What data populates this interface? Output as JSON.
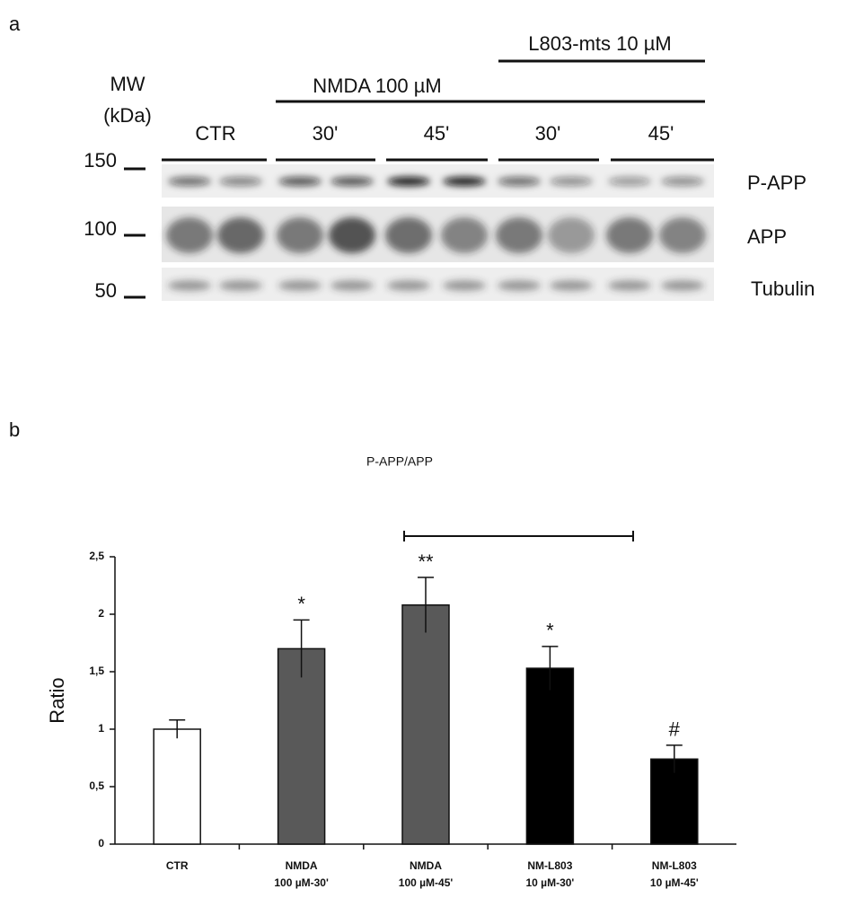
{
  "panel_a": {
    "letter": "a",
    "mw_label": [
      "MW",
      "(kDa)"
    ],
    "mw_markers": [
      "150",
      "100",
      "50"
    ],
    "treatment_labels": [
      "L803-mts 10 µM",
      "NMDA 100 µM"
    ],
    "group_labels": [
      "CTR",
      "30'",
      "45'",
      "30'",
      "45'"
    ],
    "band_labels": [
      "P-APP",
      "APP",
      "Tubulin"
    ]
  },
  "chart_data": {
    "type": "bar",
    "letter": "b",
    "title": "P-APP/APP",
    "ylabel": "Ratio",
    "categories": [
      [
        "CTR"
      ],
      [
        "NMDA",
        "100 µM-30'"
      ],
      [
        "NMDA",
        "100 µM-45'"
      ],
      [
        "NM-L803",
        "10 µM-30'"
      ],
      [
        "NM-L803",
        "10 µM-45'"
      ]
    ],
    "values": [
      1.0,
      1.7,
      2.08,
      1.53,
      0.74
    ],
    "errors": [
      0.08,
      0.25,
      0.24,
      0.19,
      0.12
    ],
    "colors": [
      "#ffffff",
      "#595959",
      "#595959",
      "#000000",
      "#000000"
    ],
    "significance": [
      null,
      "*",
      "**",
      "*",
      "#"
    ],
    "ylim": [
      0,
      2.5
    ],
    "yticks": [
      0,
      {
        "value": 0.5,
        "label": "0,5"
      },
      1,
      {
        "value": 1.5,
        "label": "1,5"
      },
      2,
      {
        "value": 2.5,
        "label": "2,5"
      }
    ]
  }
}
